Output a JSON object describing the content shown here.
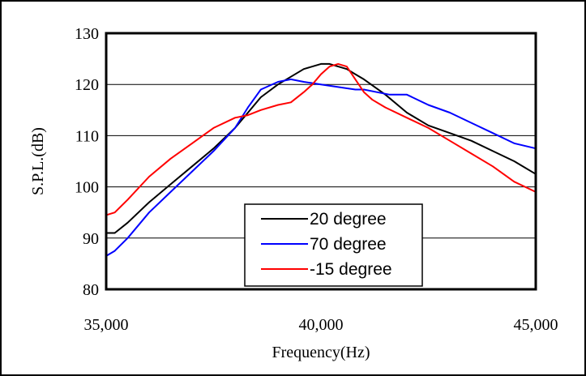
{
  "chart_data": {
    "type": "line",
    "title": "",
    "xlabel": "Frequency(Hz)",
    "ylabel": "S.P.L.(dB)",
    "xlim": [
      35000,
      45000
    ],
    "ylim": [
      80,
      130
    ],
    "x_ticks": [
      35000,
      40000,
      45000
    ],
    "x_tick_labels": [
      "35,000",
      "40,000",
      "45,000"
    ],
    "y_ticks": [
      80,
      90,
      100,
      110,
      120,
      130
    ],
    "y_tick_labels": [
      "80",
      "90",
      "100",
      "110",
      "120",
      "130"
    ],
    "grid": "horizontal",
    "legend_position": "bottom-center",
    "series": [
      {
        "name": "20 degree",
        "color": "#000000",
        "x": [
          35000,
          35200,
          35500,
          36000,
          36500,
          37000,
          37500,
          38000,
          38300,
          38600,
          39000,
          39300,
          39600,
          39800,
          40000,
          40200,
          40400,
          40600,
          40800,
          41000,
          41500,
          42000,
          42500,
          43000,
          43500,
          44000,
          44500,
          45000
        ],
        "values": [
          91,
          91,
          93,
          97,
          100.5,
          104,
          107.5,
          111.5,
          114.5,
          117.5,
          120,
          121.5,
          123,
          123.5,
          124,
          124,
          123.5,
          123,
          122,
          121,
          118,
          114.5,
          112,
          110.5,
          109,
          107,
          105,
          102.5
        ]
      },
      {
        "name": "70 degree",
        "color": "#0000ff",
        "x": [
          35000,
          35200,
          35500,
          36000,
          36500,
          37000,
          37500,
          38000,
          38300,
          38600,
          39000,
          39300,
          39600,
          40000,
          40400,
          40800,
          41000,
          41300,
          41600,
          42000,
          42500,
          43000,
          43500,
          44000,
          44500,
          45000
        ],
        "values": [
          86.5,
          87.5,
          90,
          95,
          99,
          103,
          107,
          111.5,
          115.5,
          119,
          120.5,
          121,
          120.5,
          120,
          119.5,
          119,
          119,
          118.5,
          118,
          118,
          116,
          114.5,
          112.5,
          110.5,
          108.5,
          107.5
        ]
      },
      {
        "name": "-15 degree",
        "color": "#ff0000",
        "x": [
          35000,
          35200,
          35500,
          36000,
          36500,
          37000,
          37500,
          38000,
          38300,
          38600,
          39000,
          39300,
          39600,
          39800,
          40000,
          40200,
          40400,
          40600,
          40800,
          41000,
          41200,
          41500,
          42000,
          42500,
          43000,
          43500,
          44000,
          44500,
          45000
        ],
        "values": [
          94.5,
          95,
          97.5,
          102,
          105.5,
          108.5,
          111.5,
          113.5,
          114,
          115,
          116,
          116.5,
          118.5,
          120,
          122,
          123.5,
          124,
          123.5,
          121,
          118.5,
          117,
          115.5,
          113.5,
          111.5,
          109,
          106.5,
          104,
          101,
          99
        ]
      }
    ]
  }
}
